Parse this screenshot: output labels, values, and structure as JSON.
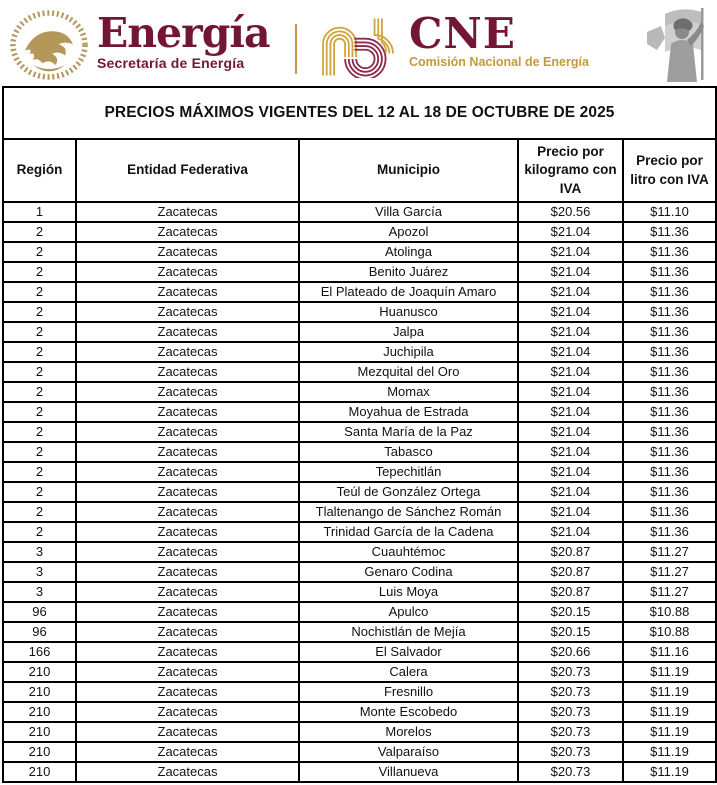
{
  "brand": {
    "energia_title": "Energía",
    "energia_subtitle": "Secretaría de Energía",
    "cne_title": "CNE",
    "cne_subtitle": "Comisión Nacional de Energía"
  },
  "icons": {
    "left_seal": "mexican-coat-of-arms-gold-seal",
    "cne_mark": "interlocking-arcs-logo",
    "right_emblem": "woman-with-flag-grayscale-emblem"
  },
  "colors": {
    "maroon": "#731635",
    "gold": "#C29A3F",
    "seal_gold": "#B5975A",
    "table_border": "#000000",
    "emblem_gray": "#8a8a8a"
  },
  "table": {
    "title": "PRECIOS MÁXIMOS VIGENTES DEL 12 AL 18 DE OCTUBRE DE 2025",
    "columns": [
      "Región",
      "Entidad Federativa",
      "Municipio",
      "Precio por kilogramo con IVA",
      "Precio por litro con IVA"
    ],
    "column_keys": [
      "region",
      "entidad-federativa",
      "municipio",
      "precio-kilogramo",
      "precio-litro"
    ],
    "rows": [
      [
        "1",
        "Zacatecas",
        "Villa García",
        "$20.56",
        "$11.10"
      ],
      [
        "2",
        "Zacatecas",
        "Apozol",
        "$21.04",
        "$11.36"
      ],
      [
        "2",
        "Zacatecas",
        "Atolinga",
        "$21.04",
        "$11.36"
      ],
      [
        "2",
        "Zacatecas",
        "Benito Juárez",
        "$21.04",
        "$11.36"
      ],
      [
        "2",
        "Zacatecas",
        "El Plateado de Joaquín Amaro",
        "$21.04",
        "$11.36"
      ],
      [
        "2",
        "Zacatecas",
        "Huanusco",
        "$21.04",
        "$11.36"
      ],
      [
        "2",
        "Zacatecas",
        "Jalpa",
        "$21.04",
        "$11.36"
      ],
      [
        "2",
        "Zacatecas",
        "Juchipila",
        "$21.04",
        "$11.36"
      ],
      [
        "2",
        "Zacatecas",
        "Mezquital del Oro",
        "$21.04",
        "$11.36"
      ],
      [
        "2",
        "Zacatecas",
        "Momax",
        "$21.04",
        "$11.36"
      ],
      [
        "2",
        "Zacatecas",
        "Moyahua de Estrada",
        "$21.04",
        "$11.36"
      ],
      [
        "2",
        "Zacatecas",
        "Santa María de la Paz",
        "$21.04",
        "$11.36"
      ],
      [
        "2",
        "Zacatecas",
        "Tabasco",
        "$21.04",
        "$11.36"
      ],
      [
        "2",
        "Zacatecas",
        "Tepechitlán",
        "$21.04",
        "$11.36"
      ],
      [
        "2",
        "Zacatecas",
        "Teúl de González Ortega",
        "$21.04",
        "$11.36"
      ],
      [
        "2",
        "Zacatecas",
        "Tlaltenango de Sánchez Román",
        "$21.04",
        "$11.36"
      ],
      [
        "2",
        "Zacatecas",
        "Trinidad García de la Cadena",
        "$21.04",
        "$11.36"
      ],
      [
        "3",
        "Zacatecas",
        "Cuauhtémoc",
        "$20.87",
        "$11.27"
      ],
      [
        "3",
        "Zacatecas",
        "Genaro Codina",
        "$20.87",
        "$11.27"
      ],
      [
        "3",
        "Zacatecas",
        "Luis Moya",
        "$20.87",
        "$11.27"
      ],
      [
        "96",
        "Zacatecas",
        "Apulco",
        "$20.15",
        "$10.88"
      ],
      [
        "96",
        "Zacatecas",
        "Nochistlán de Mejía",
        "$20.15",
        "$10.88"
      ],
      [
        "166",
        "Zacatecas",
        "El Salvador",
        "$20.66",
        "$11.16"
      ],
      [
        "210",
        "Zacatecas",
        "Calera",
        "$20.73",
        "$11.19"
      ],
      [
        "210",
        "Zacatecas",
        "Fresnillo",
        "$20.73",
        "$11.19"
      ],
      [
        "210",
        "Zacatecas",
        "Monte Escobedo",
        "$20.73",
        "$11.19"
      ],
      [
        "210",
        "Zacatecas",
        "Morelos",
        "$20.73",
        "$11.19"
      ],
      [
        "210",
        "Zacatecas",
        "Valparaíso",
        "$20.73",
        "$11.19"
      ],
      [
        "210",
        "Zacatecas",
        "Villanueva",
        "$20.73",
        "$11.19"
      ]
    ]
  }
}
